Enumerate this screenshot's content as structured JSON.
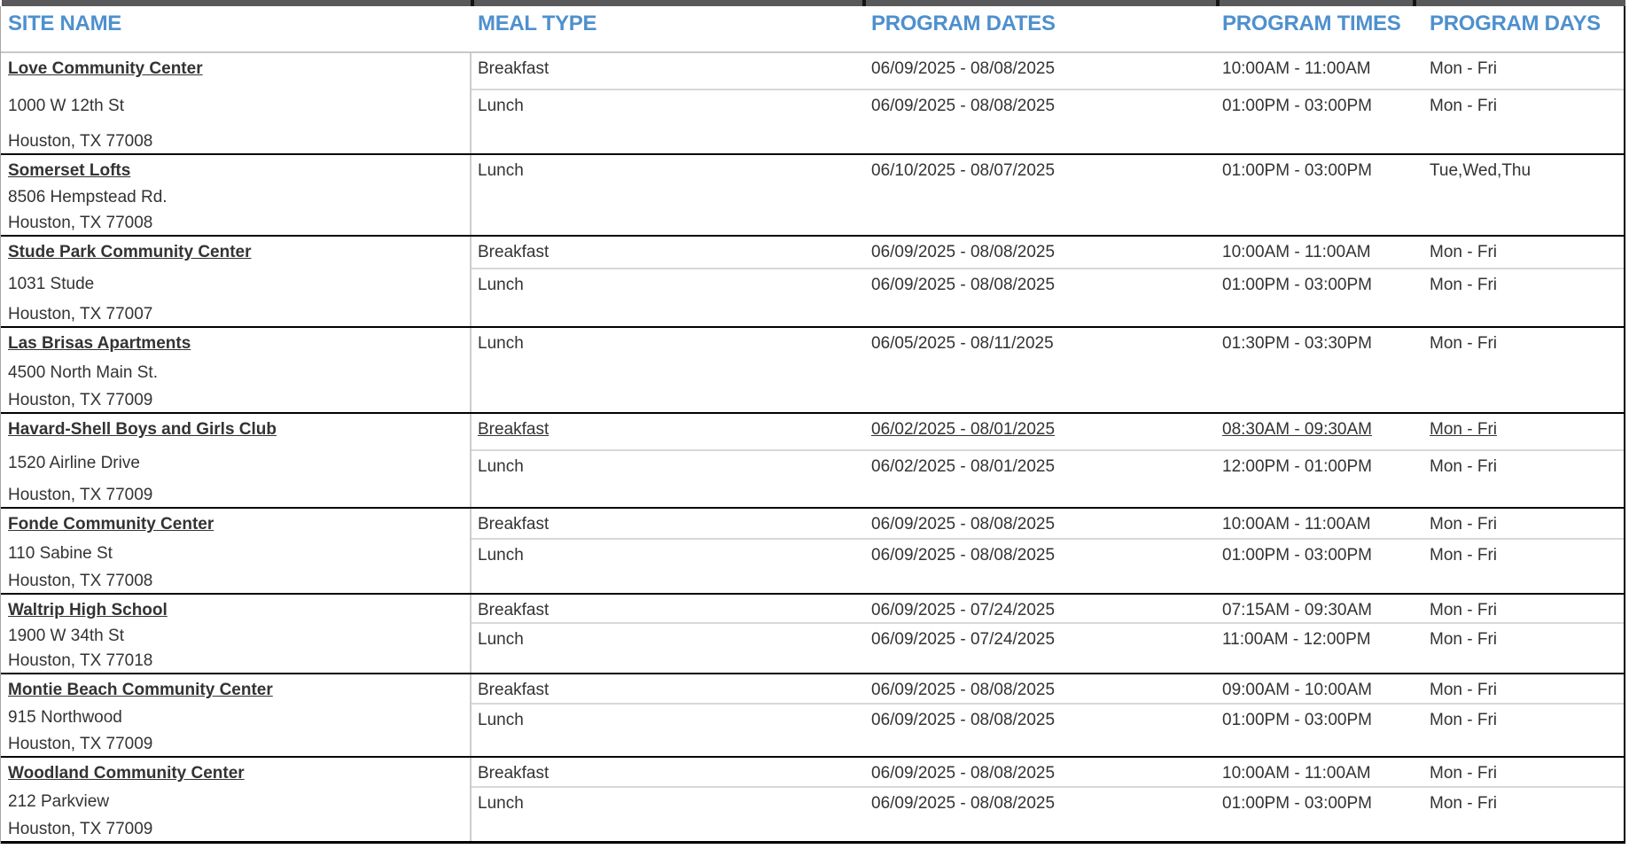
{
  "colors": {
    "header_text": "#4e90ce",
    "top_bar": "#59595b",
    "group_divider": "#000000",
    "meal_divider": "#d8d8d8",
    "site_column_divider": "#cccccc",
    "body_text": "#333333"
  },
  "table": {
    "columns": [
      {
        "label": "SITE NAME"
      },
      {
        "label": "MEAL TYPE"
      },
      {
        "label": "PROGRAM DATES"
      },
      {
        "label": "PROGRAM TIMES"
      },
      {
        "label": "PROGRAM DAYS"
      }
    ],
    "sites": [
      {
        "name": "Love Community Center",
        "address1": "1000 W 12th St",
        "address2": "Houston, TX 77008",
        "meals": [
          {
            "type": "Breakfast",
            "dates": "06/09/2025 - 08/08/2025",
            "times": "10:00AM - 11:00AM",
            "days": "Mon - Fri"
          },
          {
            "type": "Lunch",
            "dates": "06/09/2025 - 08/08/2025",
            "times": "01:00PM - 03:00PM",
            "days": "Mon - Fri"
          }
        ]
      },
      {
        "name": "Somerset Lofts",
        "address1": "8506 Hempstead Rd.",
        "address2": "Houston, TX 77008",
        "meals": [
          {
            "type": "Lunch",
            "dates": "06/10/2025 - 08/07/2025",
            "times": "01:00PM - 03:00PM",
            "days": "Tue,Wed,Thu"
          }
        ]
      },
      {
        "name": "Stude Park Community Center",
        "address1": "1031 Stude",
        "address2": "Houston, TX 77007",
        "meals": [
          {
            "type": "Breakfast",
            "dates": "06/09/2025 - 08/08/2025",
            "times": "10:00AM - 11:00AM",
            "days": "Mon - Fri"
          },
          {
            "type": "Lunch",
            "dates": "06/09/2025 - 08/08/2025",
            "times": "01:00PM - 03:00PM",
            "days": "Mon - Fri"
          }
        ]
      },
      {
        "name": "Las Brisas Apartments",
        "address1": "4500 North Main St.",
        "address2": "Houston, TX 77009",
        "meals": [
          {
            "type": "Lunch",
            "dates": "06/05/2025 - 08/11/2025",
            "times": "01:30PM - 03:30PM",
            "days": "Mon - Fri"
          }
        ]
      },
      {
        "name": "Havard-Shell Boys and Girls Club",
        "address1": "1520 Airline Drive",
        "address2": "Houston, TX 77009",
        "meals": [
          {
            "type": "Breakfast",
            "dates": "06/02/2025 - 08/01/2025",
            "times": "08:30AM - 09:30AM",
            "days": "Mon - Fri",
            "highlighted": true
          },
          {
            "type": "Lunch",
            "dates": "06/02/2025 - 08/01/2025",
            "times": "12:00PM - 01:00PM",
            "days": "Mon - Fri"
          }
        ]
      },
      {
        "name": "Fonde Community Center",
        "address1": "110 Sabine St",
        "address2": "Houston, TX 77008",
        "meals": [
          {
            "type": "Breakfast",
            "dates": "06/09/2025 - 08/08/2025",
            "times": "10:00AM - 11:00AM",
            "days": "Mon - Fri"
          },
          {
            "type": "Lunch",
            "dates": "06/09/2025 - 08/08/2025",
            "times": "01:00PM - 03:00PM",
            "days": "Mon - Fri"
          }
        ]
      },
      {
        "name": "Waltrip High School",
        "address1": "1900 W 34th St",
        "address2": "Houston, TX 77018",
        "meals": [
          {
            "type": "Breakfast",
            "dates": "06/09/2025 - 07/24/2025",
            "times": "07:15AM - 09:30AM",
            "days": "Mon - Fri"
          },
          {
            "type": "Lunch",
            "dates": "06/09/2025 - 07/24/2025",
            "times": "11:00AM - 12:00PM",
            "days": "Mon - Fri"
          }
        ]
      },
      {
        "name": "Montie Beach Community Center",
        "address1": "915 Northwood",
        "address2": "Houston, TX 77009",
        "meals": [
          {
            "type": "Breakfast",
            "dates": "06/09/2025 - 08/08/2025",
            "times": "09:00AM - 10:00AM",
            "days": "Mon - Fri"
          },
          {
            "type": "Lunch",
            "dates": "06/09/2025 - 08/08/2025",
            "times": "01:00PM - 03:00PM",
            "days": "Mon - Fri"
          }
        ]
      },
      {
        "name": "Woodland Community Center",
        "address1": "212 Parkview",
        "address2": "Houston, TX 77009",
        "meals": [
          {
            "type": "Breakfast",
            "dates": "06/09/2025 - 08/08/2025",
            "times": "10:00AM - 11:00AM",
            "days": "Mon - Fri"
          },
          {
            "type": "Lunch",
            "dates": "06/09/2025 - 08/08/2025",
            "times": "01:00PM - 03:00PM",
            "days": "Mon - Fri"
          }
        ]
      }
    ]
  }
}
